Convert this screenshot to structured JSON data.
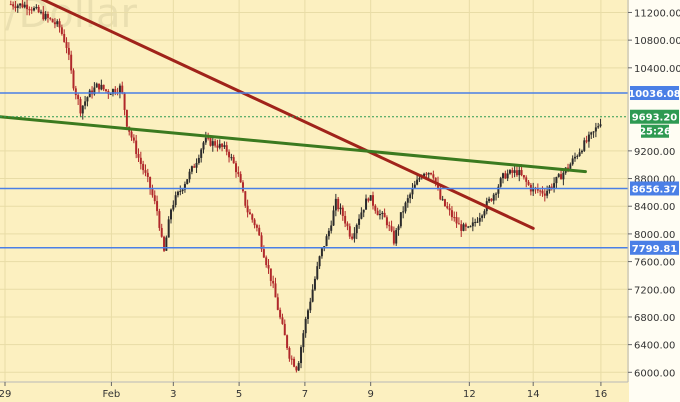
{
  "title_watermark": "/Dollar",
  "chart_data": {
    "type": "candlestick",
    "ylim": [
      5860,
      11380
    ],
    "xlim": [
      0,
      32.2
    ],
    "x_ticks": [
      {
        "label": "29",
        "t": 0
      },
      {
        "label": "Feb",
        "t": 5.5
      },
      {
        "label": "3",
        "t": 8.7
      },
      {
        "label": "5",
        "t": 12.1
      },
      {
        "label": "7",
        "t": 15.5
      },
      {
        "label": "9",
        "t": 18.9
      },
      {
        "label": "12",
        "t": 24.0
      },
      {
        "label": "14",
        "t": 27.3
      },
      {
        "label": "16",
        "t": 30.8
      }
    ],
    "y_ticks": [
      {
        "label": "11200.00",
        "v": 11200
      },
      {
        "label": "10800.00",
        "v": 10800
      },
      {
        "label": "10400.00",
        "v": 10400
      },
      {
        "label": "9200.00",
        "v": 9200
      },
      {
        "label": "8800.00",
        "v": 8800
      },
      {
        "label": "8400.00",
        "v": 8400
      },
      {
        "label": "8000.00",
        "v": 8000
      },
      {
        "label": "7600.00",
        "v": 7600
      },
      {
        "label": "7200.00",
        "v": 7200
      },
      {
        "label": "6800.00",
        "v": 6800
      },
      {
        "label": "6400.00",
        "v": 6400
      },
      {
        "label": "6000.00",
        "v": 6000
      }
    ],
    "horizontal_levels": [
      {
        "label": "10036.08",
        "value": 10036.08,
        "color": "#4a7fe6"
      },
      {
        "label": "8656.37",
        "value": 8656.37,
        "color": "#4a7fe6"
      },
      {
        "label": "7799.81",
        "value": 7799.81,
        "color": "#4a7fe6"
      }
    ],
    "current_price": {
      "label": "9693.20",
      "value": 9693.2,
      "color": "#2e9a52"
    },
    "countdown": {
      "label": "25:26",
      "color": "#2e9a52"
    },
    "trendlines": [
      {
        "color": "#a0231a",
        "from": {
          "t": 1.7,
          "v": 11420
        },
        "to": {
          "t": 27.3,
          "v": 8080
        }
      },
      {
        "color": "#3b7a1f",
        "from": {
          "t": -0.5,
          "v": 9700
        },
        "to": {
          "t": 30.0,
          "v": 8900
        }
      }
    ],
    "price_path": [
      {
        "t": 0.3,
        "v": 11320
      },
      {
        "t": 1.2,
        "v": 11300
      },
      {
        "t": 2.0,
        "v": 11150
      },
      {
        "t": 2.8,
        "v": 11000
      },
      {
        "t": 3.2,
        "v": 10700
      },
      {
        "t": 3.5,
        "v": 10200
      },
      {
        "t": 3.9,
        "v": 9800
      },
      {
        "t": 4.3,
        "v": 10000
      },
      {
        "t": 4.8,
        "v": 10150
      },
      {
        "t": 5.3,
        "v": 10050
      },
      {
        "t": 6.0,
        "v": 10120
      },
      {
        "t": 6.3,
        "v": 9600
      },
      {
        "t": 6.9,
        "v": 9100
      },
      {
        "t": 7.4,
        "v": 8750
      },
      {
        "t": 7.9,
        "v": 8300
      },
      {
        "t": 8.2,
        "v": 7700
      },
      {
        "t": 8.6,
        "v": 8400
      },
      {
        "t": 9.2,
        "v": 8700
      },
      {
        "t": 9.8,
        "v": 9000
      },
      {
        "t": 10.3,
        "v": 9350
      },
      {
        "t": 10.9,
        "v": 9300
      },
      {
        "t": 11.5,
        "v": 9200
      },
      {
        "t": 12.0,
        "v": 8900
      },
      {
        "t": 12.5,
        "v": 8350
      },
      {
        "t": 13.0,
        "v": 8100
      },
      {
        "t": 13.4,
        "v": 7700
      },
      {
        "t": 13.8,
        "v": 7300
      },
      {
        "t": 14.2,
        "v": 6800
      },
      {
        "t": 14.7,
        "v": 6250
      },
      {
        "t": 15.1,
        "v": 6050
      },
      {
        "t": 15.5,
        "v": 6700
      },
      {
        "t": 15.9,
        "v": 7200
      },
      {
        "t": 16.3,
        "v": 7700
      },
      {
        "t": 16.7,
        "v": 8000
      },
      {
        "t": 17.1,
        "v": 8450
      },
      {
        "t": 17.5,
        "v": 8250
      },
      {
        "t": 17.9,
        "v": 7950
      },
      {
        "t": 18.3,
        "v": 8250
      },
      {
        "t": 18.8,
        "v": 8550
      },
      {
        "t": 19.3,
        "v": 8300
      },
      {
        "t": 19.7,
        "v": 8200
      },
      {
        "t": 20.1,
        "v": 7900
      },
      {
        "t": 20.5,
        "v": 8300
      },
      {
        "t": 21.0,
        "v": 8600
      },
      {
        "t": 21.6,
        "v": 8900
      },
      {
        "t": 22.1,
        "v": 8900
      },
      {
        "t": 22.5,
        "v": 8500
      },
      {
        "t": 23.0,
        "v": 8300
      },
      {
        "t": 23.5,
        "v": 8100
      },
      {
        "t": 24.0,
        "v": 8050
      },
      {
        "t": 24.6,
        "v": 8300
      },
      {
        "t": 25.2,
        "v": 8550
      },
      {
        "t": 25.8,
        "v": 8850
      },
      {
        "t": 26.5,
        "v": 8900
      },
      {
        "t": 27.2,
        "v": 8650
      },
      {
        "t": 27.9,
        "v": 8600
      },
      {
        "t": 28.6,
        "v": 8800
      },
      {
        "t": 29.2,
        "v": 9000
      },
      {
        "t": 29.8,
        "v": 9250
      },
      {
        "t": 30.4,
        "v": 9450
      },
      {
        "t": 30.9,
        "v": 9690
      }
    ]
  },
  "style": {
    "background": "#fcf0c0",
    "grid": "#e8dca6",
    "axis_bg": "#ffffff",
    "candle_up": "#2b2b2b",
    "candle_down": "#b0282a"
  }
}
